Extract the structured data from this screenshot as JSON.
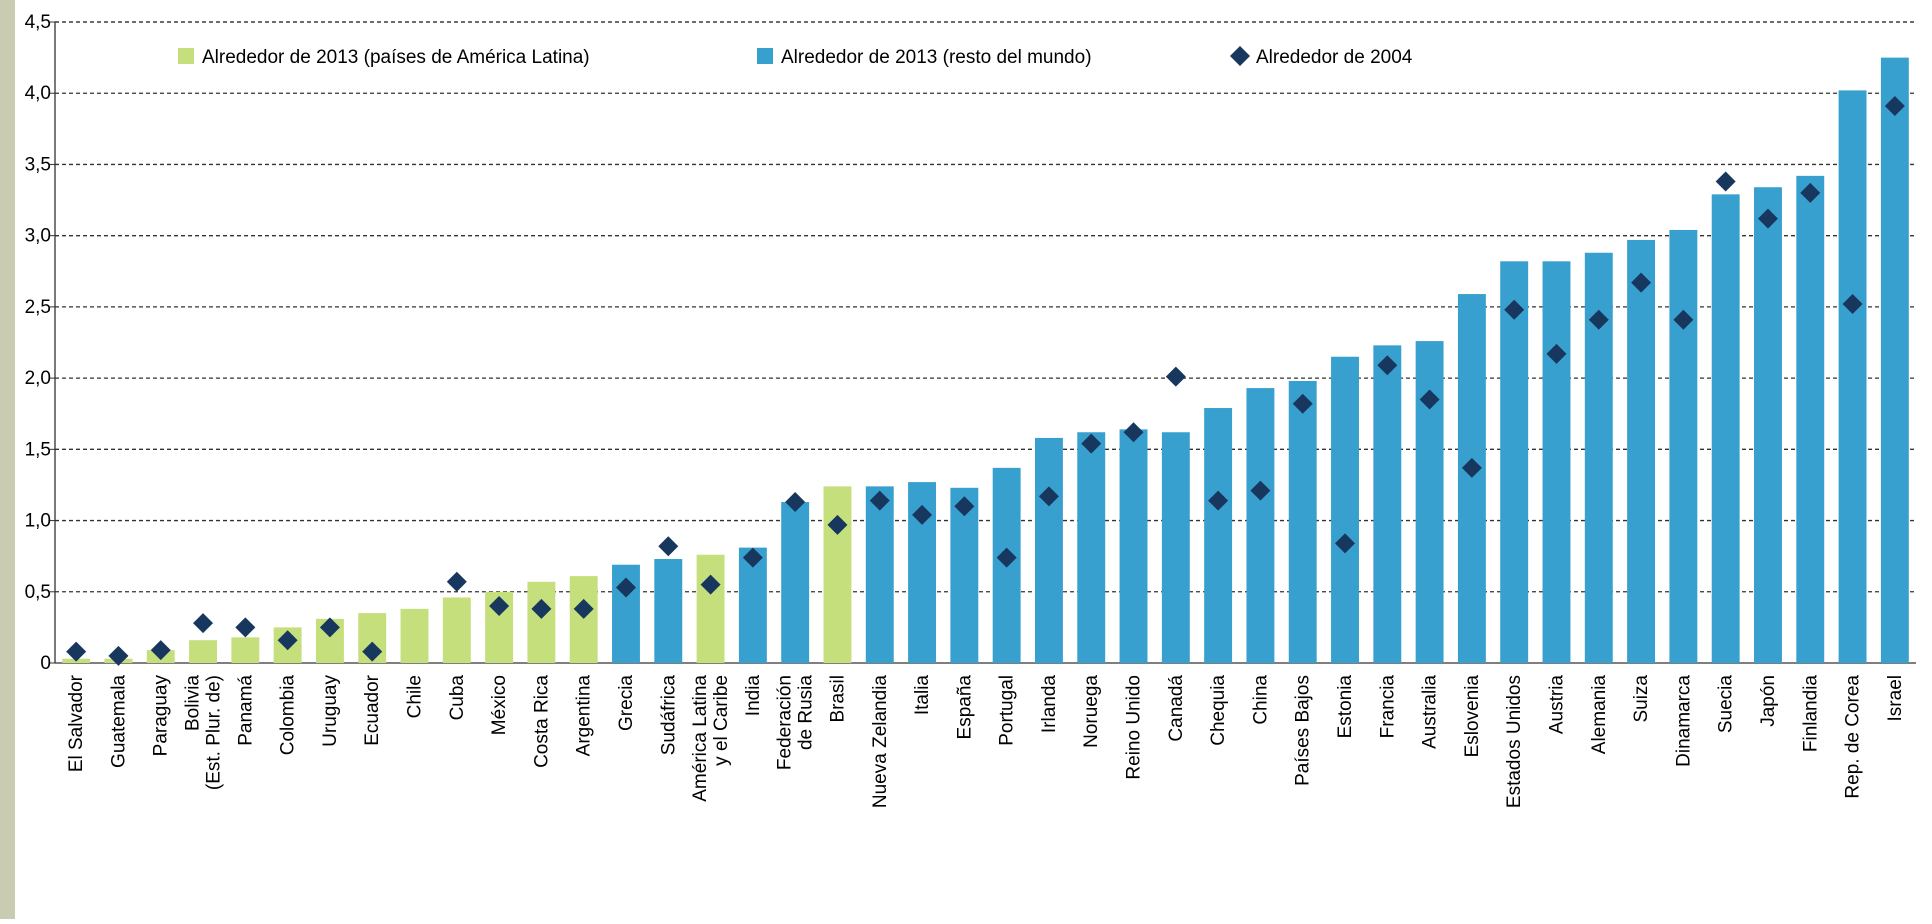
{
  "chart_data": {
    "type": "bar",
    "categories": [
      [
        "El Salvador"
      ],
      [
        "Guatemala"
      ],
      [
        "Paraguay"
      ],
      [
        "Bolivia",
        "(Est. Plur. de)"
      ],
      [
        "Panamá"
      ],
      [
        "Colombia"
      ],
      [
        "Uruguay"
      ],
      [
        "Ecuador"
      ],
      [
        "Chile"
      ],
      [
        "Cuba"
      ],
      [
        "México"
      ],
      [
        "Costa Rica"
      ],
      [
        "Argentina"
      ],
      [
        "Grecia"
      ],
      [
        "Sudáfrica"
      ],
      [
        "América Latina",
        "y el Caribe"
      ],
      [
        "India"
      ],
      [
        "Federación",
        "de Rusia"
      ],
      [
        "Brasil"
      ],
      [
        "Nueva Zelandia"
      ],
      [
        "Italia"
      ],
      [
        "España"
      ],
      [
        "Portugal"
      ],
      [
        "Irlanda"
      ],
      [
        "Noruega"
      ],
      [
        "Reino Unido"
      ],
      [
        "Canadá"
      ],
      [
        "Chequia"
      ],
      [
        "China"
      ],
      [
        "Países Bajos"
      ],
      [
        "Estonia"
      ],
      [
        "Francia"
      ],
      [
        "Australia"
      ],
      [
        "Eslovenia"
      ],
      [
        "Estados Unidos"
      ],
      [
        "Austria"
      ],
      [
        "Alemania"
      ],
      [
        "Suiza"
      ],
      [
        "Dinamarca"
      ],
      [
        "Suecia"
      ],
      [
        "Japón"
      ],
      [
        "Finlandia"
      ],
      [
        "Rep. de Corea"
      ],
      [
        "Israel"
      ]
    ],
    "series": [
      {
        "name": "Alrededor de 2013 (países de América Latina)",
        "color": "#c4df7c",
        "mark": "bar",
        "values": [
          0.03,
          0.03,
          0.09,
          0.16,
          0.18,
          0.25,
          0.31,
          0.35,
          0.38,
          0.46,
          0.5,
          0.57,
          0.61,
          null,
          null,
          0.76,
          null,
          null,
          1.24,
          null,
          null,
          null,
          null,
          null,
          null,
          null,
          null,
          null,
          null,
          null,
          null,
          null,
          null,
          null,
          null,
          null,
          null,
          null,
          null,
          null,
          null,
          null,
          null,
          null
        ]
      },
      {
        "name": "Alrededor de 2013 (resto del mundo)",
        "color": "#38a0cf",
        "mark": "bar",
        "values": [
          null,
          null,
          null,
          null,
          null,
          null,
          null,
          null,
          null,
          null,
          null,
          null,
          null,
          0.69,
          0.73,
          null,
          0.81,
          1.13,
          null,
          1.24,
          1.27,
          1.23,
          1.37,
          1.58,
          1.62,
          1.64,
          1.62,
          1.79,
          1.93,
          1.98,
          2.15,
          2.23,
          2.26,
          2.59,
          2.82,
          2.82,
          2.88,
          2.97,
          3.04,
          3.29,
          3.34,
          3.42,
          4.02,
          4.25
        ]
      },
      {
        "name": "Alrededor de 2004",
        "color": "#17375e",
        "mark": "diamond",
        "values": [
          0.08,
          0.05,
          0.09,
          0.28,
          0.25,
          0.16,
          0.25,
          0.08,
          null,
          0.57,
          0.4,
          0.38,
          0.38,
          0.53,
          0.82,
          0.55,
          0.74,
          1.13,
          0.97,
          1.14,
          1.04,
          1.1,
          0.74,
          1.17,
          1.54,
          1.62,
          2.01,
          1.14,
          1.21,
          1.82,
          0.84,
          2.09,
          1.85,
          1.37,
          2.48,
          2.17,
          2.41,
          2.67,
          2.41,
          3.38,
          3.12,
          3.3,
          2.52,
          3.91
        ]
      }
    ],
    "ylim": [
      0,
      4.5
    ],
    "yticks": [
      0,
      {
        "value": 0.5,
        "label": "0,5"
      },
      {
        "value": 1,
        "label": "1,0"
      },
      {
        "value": 1.5,
        "label": "1,5"
      },
      {
        "value": 2,
        "label": "2,0"
      },
      {
        "value": 2.5,
        "label": "2,5"
      },
      {
        "value": 3,
        "label": "3,0"
      },
      {
        "value": 3.5,
        "label": "3,5"
      },
      {
        "value": 4,
        "label": "4,0"
      },
      {
        "value": 4.5,
        "label": "4,5"
      }
    ],
    "grid": true
  }
}
